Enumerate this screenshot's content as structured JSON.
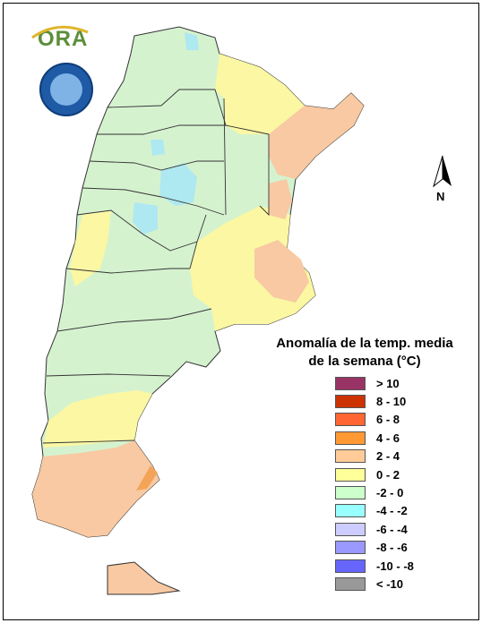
{
  "map": {
    "logo_text": "ORA",
    "north_label": "N",
    "legend_title_line1": "Anomalía de la temp. media",
    "legend_title_line2": "de la semana (°C)",
    "legend": [
      {
        "label": "> 10",
        "color": "#993366"
      },
      {
        "label": "8 - 10",
        "color": "#cc3300"
      },
      {
        "label": "6 - 8",
        "color": "#ff6633"
      },
      {
        "label": "4 - 6",
        "color": "#ff9933"
      },
      {
        "label": "2 - 4",
        "color": "#ffcc99"
      },
      {
        "label": "0 - 2",
        "color": "#ffff99"
      },
      {
        "label": "-2 - 0",
        "color": "#ccffcc"
      },
      {
        "label": "-4 - -2",
        "color": "#99ffff"
      },
      {
        "label": "-6 - -4",
        "color": "#ccccff"
      },
      {
        "label": "-8 - -6",
        "color": "#9999ff"
      },
      {
        "label": "-10 - -8",
        "color": "#6666ff"
      },
      {
        "label": "< -10",
        "color": "#999999"
      }
    ],
    "colors": {
      "band_2_4": "#f8c9a2",
      "band_0_2": "#fbf7a3",
      "band_neg2_0": "#d5f2cf",
      "band_neg4_neg2": "#aee8f0",
      "band_4_6": "#f3a458",
      "border": "#333333"
    }
  }
}
